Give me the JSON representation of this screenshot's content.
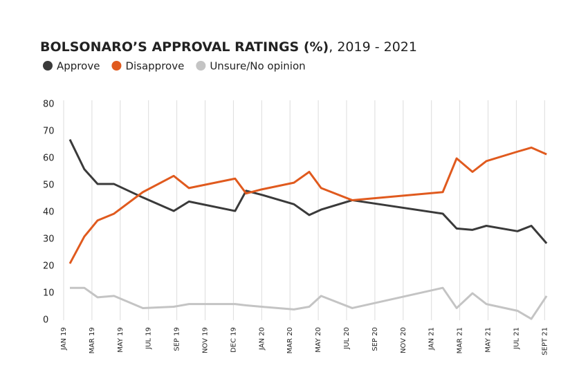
{
  "chart_data": {
    "type": "line",
    "title": "BOLSONARO’S APPROVAL RATINGS (%)",
    "subtitle": ", 2019 - 2021",
    "x": [
      0.22,
      0.73,
      1.2,
      1.78,
      2.8,
      3.89,
      4.43,
      6.06,
      6.45,
      7.0,
      8.14,
      8.68,
      9.1,
      10.2,
      13.4,
      13.89,
      14.45,
      14.94,
      16.04,
      16.53,
      17.07
    ],
    "series": [
      {
        "name": "Approve",
        "color": "#3a3a3a",
        "values": [
          67,
          56,
          50.5,
          50.5,
          45.5,
          40.5,
          44,
          40.5,
          48,
          46.5,
          43,
          39,
          41,
          44.5,
          39.5,
          34,
          33.5,
          35,
          33,
          35,
          28.5
        ]
      },
      {
        "name": "Disapprove",
        "color": "#e05a1e",
        "values": [
          21,
          31,
          37,
          39.5,
          47.5,
          53.5,
          49,
          52.5,
          47,
          48.5,
          51,
          55,
          49,
          44.5,
          47.5,
          60,
          55,
          59,
          62.5,
          64,
          61.5
        ]
      },
      {
        "name": "Unsure/No opinion",
        "color": "#c4c4c4",
        "values": [
          12,
          12,
          8.5,
          9,
          4.5,
          5,
          6,
          6,
          5.5,
          5,
          4,
          5,
          9,
          4.5,
          12,
          4.5,
          10,
          6,
          3.5,
          0.5,
          9
        ]
      }
    ],
    "xlim": [
      0,
      17.2
    ],
    "xticks": [
      {
        "value": 0,
        "label": "JAN 19"
      },
      {
        "value": 1,
        "label": "MAR 19"
      },
      {
        "value": 2,
        "label": "MAY 19"
      },
      {
        "value": 3,
        "label": "JUL 19"
      },
      {
        "value": 4,
        "label": "SEP 19"
      },
      {
        "value": 5,
        "label": "NOV 19"
      },
      {
        "value": 6,
        "label": "DEC 19"
      },
      {
        "value": 7,
        "label": "JAN 20"
      },
      {
        "value": 8,
        "label": "MAR 20"
      },
      {
        "value": 9,
        "label": "MAY 20"
      },
      {
        "value": 10,
        "label": "JUL 20"
      },
      {
        "value": 11,
        "label": "SEP 20"
      },
      {
        "value": 12,
        "label": "NOV 20"
      },
      {
        "value": 13,
        "label": "JAN 21"
      },
      {
        "value": 14,
        "label": "MAR 21"
      },
      {
        "value": 15,
        "label": "MAY 21"
      },
      {
        "value": 16,
        "label": "JUL 21"
      },
      {
        "value": 17,
        "label": "SEPT 21"
      }
    ],
    "ylim": [
      0,
      80
    ],
    "yticks": [
      0,
      10,
      20,
      30,
      40,
      50,
      60,
      70,
      80
    ],
    "grid": "x",
    "legend": "top-left"
  }
}
